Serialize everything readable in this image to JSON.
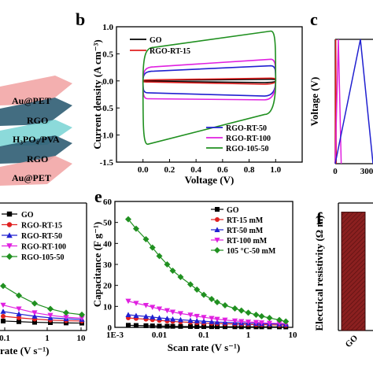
{
  "panel_letters": {
    "b": "b",
    "c": "c",
    "e": "e",
    "f": "f"
  },
  "device_stack": {
    "layers": [
      {
        "text": "Au@PET",
        "color": "#f2a6a6"
      },
      {
        "text": "RGO",
        "color": "#2f5d73"
      },
      {
        "text": "H₃PO₄/PVA",
        "color": "#7fd6d6"
      },
      {
        "text": "RGO",
        "color": "#2f5d73"
      },
      {
        "text": "Au@PET",
        "color": "#f2a6a6"
      }
    ]
  },
  "chart_data": [
    {
      "id": "b",
      "type": "line",
      "xlabel": "Voltage (V)",
      "ylabel": "Current density (A cm⁻³)",
      "xlim": [
        -0.2,
        1.2
      ],
      "ylim": [
        -1.5,
        1.0
      ],
      "xticks": [
        "0.0",
        "0.2",
        "0.4",
        "0.6",
        "0.8",
        "1.0"
      ],
      "yticks": [
        "-1.5",
        "-1.0",
        "-0.5",
        "0.0",
        "0.5",
        "1.0"
      ],
      "series": [
        {
          "name": "GO",
          "color": "#000000",
          "loop": {
            "top": [
              0.01,
              0.03
            ],
            "bottom": [
              -0.01,
              -0.03
            ]
          }
        },
        {
          "name": "RGO-RT-15",
          "color": "#e02020",
          "loop": {
            "top": [
              0.02,
              0.05
            ],
            "bottom": [
              -0.02,
              -0.06
            ]
          }
        },
        {
          "name": "RGO-RT-50",
          "color": "#2020d0",
          "loop": {
            "top": [
              0.18,
              0.28
            ],
            "bottom": [
              -0.22,
              -0.28
            ]
          }
        },
        {
          "name": "RGO-RT-100",
          "color": "#e020e0",
          "loop": {
            "top": [
              0.26,
              0.4
            ],
            "bottom": [
              -0.33,
              -0.35
            ]
          }
        },
        {
          "name": "RGO-105-50",
          "color": "#209020",
          "loop": {
            "top": [
              0.62,
              0.92
            ],
            "bottom": [
              -1.17,
              -0.62
            ]
          }
        }
      ],
      "legend_top": [
        "GO",
        "RGO-RT-15"
      ],
      "legend_bottom": [
        "RGO-RT-50",
        "RGO-RT-100",
        "RGO-105-50"
      ]
    },
    {
      "id": "c",
      "type": "line",
      "ylabel": "Voltage (V)",
      "xtick_visible": [
        "0",
        "300"
      ],
      "series": [
        {
          "name": "",
          "color": "#e02020",
          "peak_x": 5
        },
        {
          "name": "",
          "color": "#e020e0",
          "peak_x": 30
        },
        {
          "name": "",
          "color": "#2020d0",
          "peak_x": 240
        }
      ]
    },
    {
      "id": "d",
      "type": "line",
      "xlabel": "rate (V s⁻¹)",
      "xticks_visible": [
        "0.1",
        "1",
        "10"
      ],
      "series": [
        {
          "name": "GO",
          "color": "#000000",
          "marker": "square",
          "values": [
            1.0,
            0.8,
            0.6,
            0.5,
            0.4,
            0.35
          ]
        },
        {
          "name": "RGO-RT-15",
          "color": "#e02020",
          "marker": "circle",
          "values": [
            2.5,
            2.0,
            1.6,
            1.3,
            1.1,
            1.0
          ]
        },
        {
          "name": "RGO-RT-50",
          "color": "#2020d0",
          "marker": "triangle-up",
          "values": [
            4.0,
            3.2,
            2.5,
            2.0,
            1.7,
            1.5
          ]
        },
        {
          "name": "RGO-RT-100",
          "color": "#e020e0",
          "marker": "triangle-down",
          "values": [
            6.0,
            4.8,
            3.6,
            2.8,
            2.2,
            1.9
          ]
        },
        {
          "name": "RGO-105-50",
          "color": "#209020",
          "marker": "diamond",
          "values": [
            12.0,
            9.0,
            6.5,
            4.8,
            3.6,
            3.0
          ]
        }
      ]
    },
    {
      "id": "e",
      "type": "line",
      "xlabel": "Scan rate (V s⁻¹)",
      "ylabel": "Capacitance (F g⁻¹)",
      "xscale": "log",
      "xlim": [
        0.001,
        10
      ],
      "ylim": [
        0,
        60
      ],
      "xticks": [
        "1E-3",
        "0.01",
        "0.1",
        "1",
        "10"
      ],
      "yticks": [
        "0",
        "10",
        "20",
        "30",
        "40",
        "50",
        "60"
      ],
      "x": [
        0.002,
        0.003,
        0.005,
        0.007,
        0.01,
        0.015,
        0.02,
        0.03,
        0.05,
        0.07,
        0.1,
        0.15,
        0.2,
        0.3,
        0.5,
        0.7,
        1,
        1.5,
        2,
        3,
        5,
        7
      ],
      "series": [
        {
          "name": "GO",
          "color": "#000000",
          "marker": "square",
          "values": [
            1.0,
            0.9,
            0.8,
            0.7,
            0.6,
            0.55,
            0.5,
            0.45,
            0.4,
            0.38,
            0.35,
            0.33,
            0.3,
            0.3,
            0.28,
            0.27,
            0.25,
            0.25,
            0.24,
            0.23,
            0.22,
            0.2
          ]
        },
        {
          "name": "RT-15 mM",
          "color": "#e02020",
          "marker": "circle",
          "values": [
            4.5,
            4.2,
            3.9,
            3.6,
            3.3,
            3.0,
            2.8,
            2.6,
            2.4,
            2.2,
            2.0,
            1.9,
            1.8,
            1.7,
            1.6,
            1.5,
            1.4,
            1.3,
            1.3,
            1.2,
            1.1,
            1.0
          ]
        },
        {
          "name": "RT-50 mM",
          "color": "#2020d0",
          "marker": "triangle-up",
          "values": [
            6.0,
            5.6,
            5.2,
            4.9,
            4.5,
            4.2,
            3.9,
            3.6,
            3.3,
            3.1,
            2.9,
            2.7,
            2.5,
            2.4,
            2.2,
            2.1,
            2.0,
            1.9,
            1.8,
            1.7,
            1.6,
            1.5
          ]
        },
        {
          "name": "RT-100 mM",
          "color": "#e020e0",
          "marker": "triangle-down",
          "values": [
            12.5,
            11.5,
            10.5,
            9.6,
            8.8,
            8.0,
            7.3,
            6.6,
            5.9,
            5.3,
            4.8,
            4.3,
            3.9,
            3.5,
            3.1,
            2.8,
            2.6,
            2.4,
            2.2,
            2.0,
            1.9,
            1.8
          ]
        },
        {
          "name": "105 °C-50 mM",
          "color": "#209020",
          "marker": "diamond",
          "values": [
            51.5,
            47.0,
            42.0,
            38.0,
            34.0,
            30.0,
            27.0,
            24.0,
            20.5,
            18.0,
            15.5,
            13.5,
            12.0,
            10.5,
            9.0,
            8.0,
            7.0,
            6.0,
            5.3,
            4.5,
            3.5,
            2.8
          ]
        }
      ]
    },
    {
      "id": "f",
      "type": "bar",
      "ylabel": "Electrical resistivity (Ω m)",
      "categories": [
        "GO"
      ],
      "values": [
        650
      ],
      "ylim": [
        0,
        700
      ],
      "color": "#8b2020"
    }
  ]
}
